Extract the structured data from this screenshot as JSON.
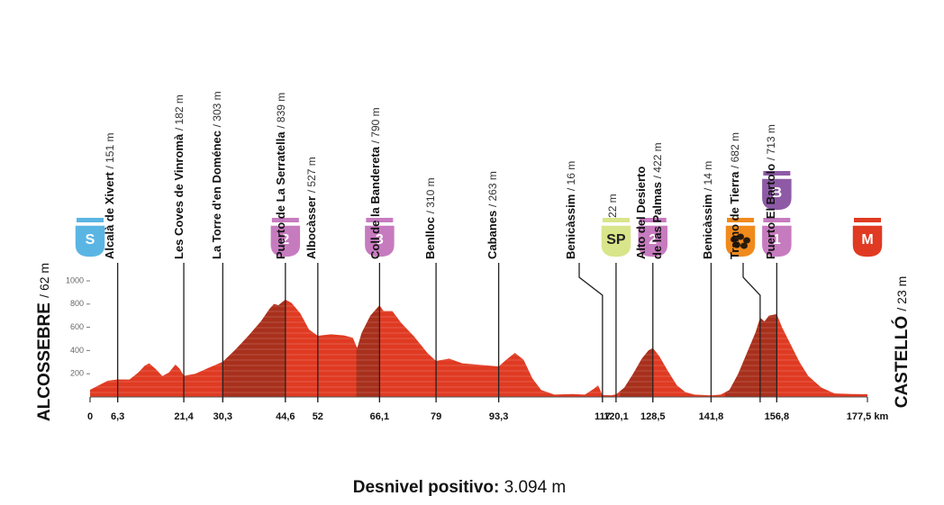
{
  "chart_data": {
    "type": "area",
    "start_label": {
      "name": "ALCOSSEBRE",
      "elevation": 62,
      "elevation_label": "/ 62 m"
    },
    "finish_label": {
      "name": "CASTELLÓ",
      "elevation": 23,
      "elevation_label": "/ 23 m"
    },
    "x": [
      0,
      4,
      6.3,
      9,
      11,
      12.5,
      13.5,
      15,
      16.5,
      18,
      19.5,
      20.5,
      21.4,
      24,
      27,
      30.3,
      33,
      36,
      39,
      41,
      42,
      43,
      44.6,
      46,
      48,
      50,
      52,
      55,
      58,
      60,
      61,
      62,
      64,
      66.1,
      67,
      69,
      71,
      74,
      77,
      79,
      82,
      85,
      88,
      91,
      93.3,
      95,
      97,
      99,
      101,
      103,
      106,
      110,
      113,
      115,
      116,
      117,
      119,
      120.1,
      122,
      124,
      126,
      127.5,
      128.5,
      130,
      132,
      134,
      136,
      138,
      141.8,
      144,
      146,
      148,
      150,
      152,
      153,
      154,
      155,
      156.8,
      158,
      160,
      162,
      164,
      167,
      170,
      174,
      177.5
    ],
    "values": [
      62,
      140,
      151,
      150,
      210,
      270,
      290,
      240,
      180,
      210,
      280,
      240,
      182,
      200,
      250,
      303,
      400,
      520,
      650,
      760,
      800,
      790,
      839,
      810,
      720,
      580,
      527,
      540,
      530,
      510,
      420,
      550,
      700,
      790,
      740,
      740,
      640,
      520,
      380,
      310,
      330,
      290,
      280,
      270,
      263,
      320,
      380,
      320,
      160,
      60,
      20,
      25,
      20,
      70,
      100,
      16,
      15,
      22,
      80,
      200,
      330,
      400,
      422,
      350,
      220,
      100,
      40,
      20,
      14,
      20,
      60,
      200,
      380,
      560,
      682,
      650,
      700,
      713,
      600,
      450,
      300,
      180,
      80,
      30,
      25,
      23
    ],
    "color": "#e03a22",
    "climb_color": "#a8301c",
    "climb_segments": [
      [
        30.3,
        44.6
      ],
      [
        60.8,
        66.1
      ],
      [
        121,
        128.5
      ],
      [
        145,
        156.8
      ]
    ],
    "xlim": [
      0,
      177.5
    ],
    "ylim": [
      0,
      1000
    ],
    "yticks": [
      200,
      400,
      600,
      800,
      1000
    ],
    "xticks": [
      0,
      {
        "value": 6.3,
        "label": "6,3"
      },
      {
        "value": 21.4,
        "label": "21,4"
      },
      {
        "value": 30.3,
        "label": "30,3"
      },
      {
        "value": 44.6,
        "label": "44,6"
      },
      52,
      {
        "value": 66.1,
        "label": "66,1"
      },
      79,
      {
        "value": 93.3,
        "label": "93,3"
      },
      117,
      {
        "value": 120.1,
        "label": "120,1"
      },
      {
        "value": 128.5,
        "label": "128,5"
      },
      {
        "value": 141.8,
        "label": "141,8"
      },
      {
        "value": 156.8,
        "label": "156,8"
      },
      {
        "value": 177.5,
        "label": "177,5 km"
      }
    ],
    "waypoints": [
      {
        "name": [
          "Alcalà de Xivert"
        ],
        "km": 6.3,
        "elevation": 151,
        "elevation_label": "/ 151 m"
      },
      {
        "name": [
          "Les Coves de Vinromà"
        ],
        "km": 21.4,
        "elevation": 182,
        "elevation_label": "/ 182 m"
      },
      {
        "name": [
          "La Torre d'en Doménec"
        ],
        "km": 30.3,
        "elevation": 303,
        "elevation_label": "/ 303 m"
      },
      {
        "name": [
          "Puerto de La Serratella"
        ],
        "km": 44.6,
        "elevation": 839,
        "elevation_label": "/ 839 m"
      },
      {
        "name": [
          "Albocàsser"
        ],
        "km": 52,
        "elevation": 527,
        "elevation_label": "/ 527 m"
      },
      {
        "name": [
          "Coll de la Bandereta"
        ],
        "km": 66.1,
        "elevation": 790,
        "elevation_label": "/ 790 m"
      },
      {
        "name": [
          "Benlloc"
        ],
        "km": 79,
        "elevation": 310,
        "elevation_label": "/ 310 m"
      },
      {
        "name": [
          "Cabanes"
        ],
        "km": 93.3,
        "elevation": 263,
        "elevation_label": "/ 263 m"
      },
      {
        "name": [
          "Benicàssim"
        ],
        "km": 117,
        "elevation": 16,
        "elevation_label": "/ 16 m"
      },
      {
        "name": [],
        "km": 120.1,
        "elevation": 22,
        "elevation_label": "22 m"
      },
      {
        "name": [
          "Alto del Desierto",
          "de las Palmas"
        ],
        "km": 128.5,
        "elevation": 422,
        "elevation_label": "/ 422 m"
      },
      {
        "name": [
          "Benicàssim"
        ],
        "km": 141.8,
        "elevation": 14,
        "elevation_label": "/ 14 m"
      },
      {
        "name": [
          "Tramo de Tierra"
        ],
        "km": 153,
        "elevation": 682,
        "elevation_label": "/ 682 m"
      },
      {
        "name": [
          "Puerto El Bartolo"
        ],
        "km": 156.8,
        "elevation": 713,
        "elevation_label": "/ 713 m"
      }
    ],
    "markers": [
      {
        "km": 0,
        "label": "S",
        "color": "#5bb5e3"
      },
      {
        "km": 44.6,
        "label": "2",
        "color": "#c77bbf"
      },
      {
        "km": 66.1,
        "label": "3",
        "color": "#c77bbf"
      },
      {
        "km": 120.1,
        "label": "SP",
        "color": "#d9e58a"
      },
      {
        "km": 128.5,
        "label": "2",
        "color": "#c77bbf"
      },
      {
        "km": 153,
        "color": "#f08a1c"
      },
      {
        "km": 156.8,
        "label": "1",
        "color": "#c77bbf"
      },
      {
        "km": 156.8,
        "label": "B",
        "color": "#8e5aa6"
      },
      {
        "km": 177.5,
        "label": "M",
        "color": "#e03a22"
      }
    ],
    "footer": {
      "label": "Desnivel positivo:",
      "value": 3094,
      "value_label": "3.094 m"
    }
  }
}
